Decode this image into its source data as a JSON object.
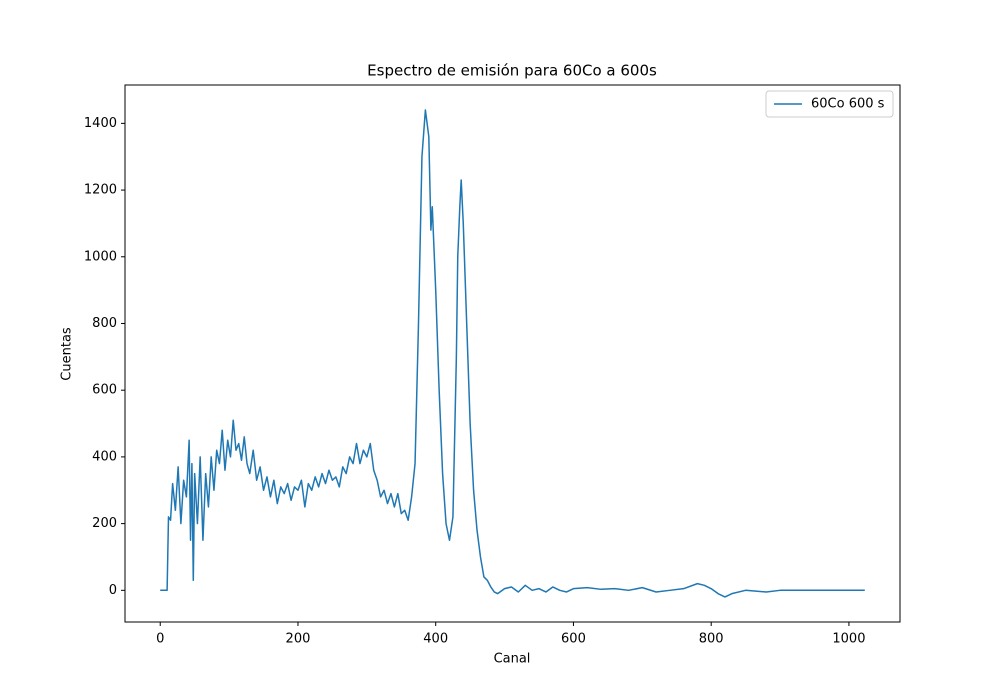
{
  "chart_data": {
    "type": "line",
    "title": "Espectro de emisión para 60Co a 600s",
    "xlabel": "Canal",
    "ylabel": "Cuentas",
    "x": [
      0,
      5,
      10,
      12,
      15,
      18,
      22,
      26,
      30,
      34,
      38,
      42,
      44,
      46,
      48,
      50,
      54,
      58,
      62,
      66,
      70,
      74,
      78,
      82,
      86,
      90,
      94,
      98,
      102,
      106,
      110,
      114,
      118,
      122,
      126,
      130,
      135,
      140,
      145,
      150,
      155,
      160,
      165,
      170,
      175,
      180,
      185,
      190,
      195,
      200,
      205,
      210,
      215,
      220,
      225,
      230,
      235,
      240,
      245,
      250,
      255,
      260,
      265,
      270,
      275,
      280,
      285,
      290,
      295,
      300,
      305,
      310,
      315,
      320,
      325,
      330,
      335,
      340,
      345,
      350,
      355,
      360,
      365,
      370,
      375,
      380,
      385,
      390,
      393,
      395,
      400,
      405,
      410,
      415,
      420,
      425,
      430,
      432,
      435,
      437,
      440,
      445,
      450,
      455,
      460,
      465,
      470,
      475,
      480,
      485,
      490,
      500,
      510,
      520,
      530,
      540,
      550,
      560,
      570,
      580,
      590,
      600,
      620,
      640,
      660,
      680,
      700,
      720,
      740,
      760,
      780,
      790,
      800,
      810,
      820,
      830,
      850,
      880,
      900,
      950,
      1000,
      1023
    ],
    "series": [
      {
        "name": "60Co 600 s",
        "color": "#1f77b4",
        "values": [
          0,
          0,
          0,
          220,
          210,
          320,
          240,
          370,
          200,
          330,
          280,
          450,
          150,
          380,
          30,
          350,
          200,
          400,
          150,
          350,
          250,
          400,
          300,
          420,
          380,
          480,
          360,
          450,
          400,
          510,
          420,
          440,
          390,
          460,
          380,
          350,
          420,
          330,
          370,
          300,
          340,
          280,
          330,
          260,
          310,
          290,
          320,
          270,
          310,
          300,
          330,
          250,
          320,
          300,
          340,
          310,
          350,
          320,
          360,
          330,
          340,
          310,
          370,
          350,
          400,
          380,
          440,
          380,
          420,
          400,
          440,
          360,
          330,
          280,
          300,
          260,
          290,
          250,
          290,
          230,
          240,
          210,
          280,
          380,
          800,
          1300,
          1440,
          1360,
          1080,
          1150,
          900,
          600,
          350,
          200,
          150,
          220,
          700,
          1000,
          1150,
          1230,
          1100,
          800,
          500,
          300,
          180,
          100,
          40,
          30,
          10,
          -5,
          -10,
          5,
          10,
          -5,
          15,
          0,
          5,
          -5,
          10,
          0,
          -5,
          5,
          8,
          3,
          5,
          0,
          8,
          -5,
          0,
          5,
          20,
          15,
          5,
          -10,
          -20,
          -10,
          0,
          -5,
          0,
          0,
          0,
          0
        ]
      }
    ],
    "xlim": [
      -51.15,
      1074.15
    ],
    "ylim": [
      -95,
      1515
    ],
    "xticks": [
      0,
      200,
      400,
      600,
      800,
      1000
    ],
    "yticks": [
      0,
      200,
      400,
      600,
      800,
      1000,
      1200,
      1400
    ],
    "legend": "upper right"
  }
}
